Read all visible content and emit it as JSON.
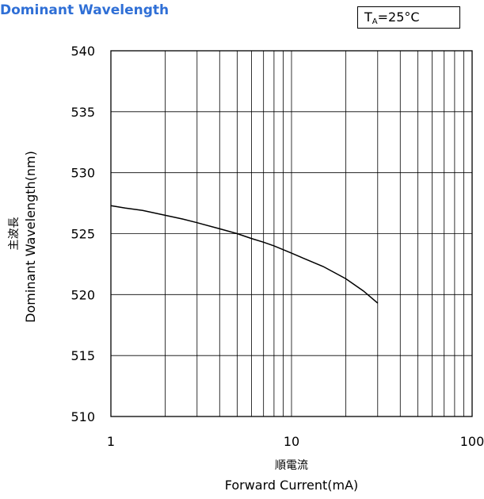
{
  "title": "Dominant Wavelength",
  "condition": {
    "symbol": "T",
    "subscript": "A",
    "value": "=25°C"
  },
  "chart_data": {
    "type": "line",
    "xscale": "log",
    "xlim": [
      1,
      100
    ],
    "ylim": [
      510,
      540
    ],
    "x_ticks": [
      "1",
      "10",
      "100"
    ],
    "y_ticks": [
      "540",
      "535",
      "530",
      "525",
      "520",
      "515",
      "510"
    ],
    "ylabel_jp": "主波長",
    "ylabel": "Dominant Wavelength(nm)",
    "xlabel_jp": "順電流",
    "xlabel": "Forward Current(mA)",
    "grid": true,
    "series": [
      {
        "x": [
          1,
          1.2,
          1.5,
          2,
          2.5,
          3,
          4,
          5,
          6,
          7,
          8,
          10,
          12,
          15,
          20,
          25,
          30
        ],
        "y": [
          527.3,
          527.1,
          526.9,
          526.5,
          526.2,
          525.9,
          525.4,
          525.0,
          524.6,
          524.3,
          524.0,
          523.4,
          522.9,
          522.3,
          521.3,
          520.3,
          519.3
        ]
      }
    ]
  }
}
